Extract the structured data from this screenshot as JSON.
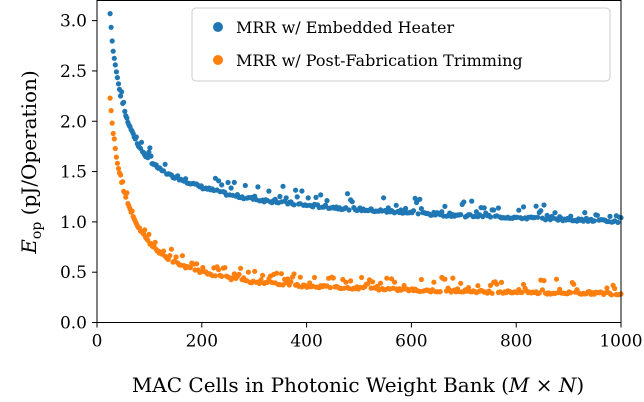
{
  "chart_data": {
    "type": "scatter",
    "title": "",
    "xlabel": "MAC Cells in Photonic Weight Bank (M × N)",
    "ylabel": "E_op (pJ/Operation)",
    "ylabel_main": "E",
    "ylabel_sub": "op",
    "ylabel_rest": " (pJ/Operation)",
    "xlabel_main": "MAC Cells in Photonic Weight Bank (",
    "xlabel_math": "M × N",
    "xlabel_close": ")",
    "xlim": [
      0,
      1000
    ],
    "ylim": [
      0,
      3.2
    ],
    "xticks": [
      0,
      200,
      400,
      600,
      800,
      1000
    ],
    "yticks": [
      0.0,
      0.5,
      1.0,
      1.5,
      2.0,
      2.5,
      3.0
    ],
    "ytick_labels": [
      "0.0",
      "0.5",
      "1.0",
      "1.5",
      "2.0",
      "2.5",
      "3.0"
    ],
    "grid": false,
    "legend_position": "top-right",
    "series": [
      {
        "name": "MRR w/ Embedded Heater",
        "color": "#1f77b4",
        "x": [
          25,
          30,
          35,
          40,
          45,
          50,
          55,
          60,
          70,
          80,
          90,
          100,
          120,
          140,
          160,
          180,
          200,
          250,
          300,
          350,
          400,
          450,
          500,
          550,
          600,
          650,
          700,
          750,
          800,
          850,
          900,
          950,
          1000
        ],
        "y": [
          3.07,
          2.73,
          2.55,
          2.4,
          2.25,
          2.15,
          2.05,
          1.97,
          1.85,
          1.74,
          1.66,
          1.6,
          1.51,
          1.45,
          1.41,
          1.37,
          1.33,
          1.26,
          1.21,
          1.18,
          1.15,
          1.13,
          1.11,
          1.09,
          1.07,
          1.06,
          1.05,
          1.04,
          1.03,
          1.02,
          1.01,
          1.0,
          0.99
        ],
        "upper_y": [
          3.07,
          2.73,
          2.62,
          2.48,
          2.33,
          2.24,
          2.12,
          2.05,
          1.95,
          1.85,
          1.8,
          1.75,
          1.64,
          1.58,
          1.55,
          1.52,
          1.49,
          1.42,
          1.38,
          1.36,
          1.33,
          1.3,
          1.28,
          1.26,
          1.25,
          1.24,
          1.22,
          1.2,
          1.18,
          1.17,
          1.15,
          1.14,
          1.13
        ]
      },
      {
        "name": "MRR w/ Post-Fabrication Trimming",
        "color": "#ff7f0e",
        "x": [
          25,
          30,
          35,
          40,
          45,
          50,
          55,
          60,
          70,
          80,
          90,
          100,
          120,
          140,
          160,
          180,
          200,
          250,
          300,
          350,
          400,
          450,
          500,
          550,
          600,
          650,
          700,
          750,
          800,
          850,
          900,
          950,
          1000
        ],
        "y": [
          2.23,
          1.92,
          1.7,
          1.55,
          1.42,
          1.32,
          1.24,
          1.16,
          1.03,
          0.93,
          0.85,
          0.78,
          0.68,
          0.61,
          0.56,
          0.52,
          0.49,
          0.43,
          0.39,
          0.37,
          0.35,
          0.34,
          0.33,
          0.32,
          0.31,
          0.3,
          0.3,
          0.29,
          0.29,
          0.28,
          0.28,
          0.28,
          0.27
        ],
        "upper_y": [
          2.23,
          1.92,
          1.78,
          1.63,
          1.5,
          1.41,
          1.33,
          1.25,
          1.13,
          1.03,
          0.97,
          0.9,
          0.8,
          0.74,
          0.69,
          0.65,
          0.62,
          0.56,
          0.52,
          0.5,
          0.49,
          0.48,
          0.47,
          0.46,
          0.46,
          0.45,
          0.45,
          0.44,
          0.44,
          0.44,
          0.43,
          0.43,
          0.43
        ]
      }
    ]
  }
}
